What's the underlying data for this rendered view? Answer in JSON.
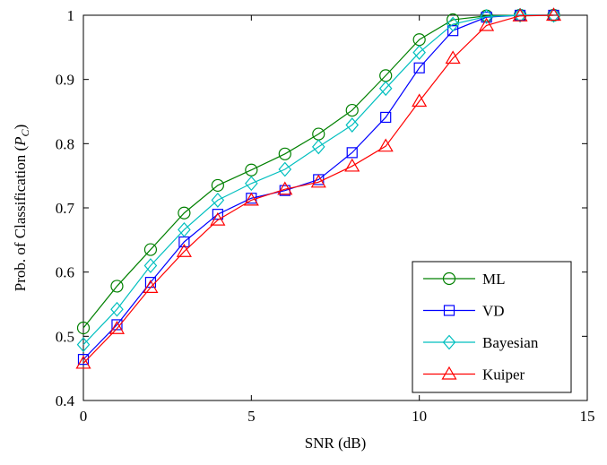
{
  "chart_data": {
    "type": "line",
    "xlabel": "SNR (dB)",
    "ylabel_prefix": "Prob. of Classification (",
    "ylabel_symbol": "P",
    "ylabel_subscript": "C",
    "ylabel_suffix": ")",
    "xlim": [
      0,
      15
    ],
    "ylim": [
      0.4,
      1
    ],
    "xticks": [
      0,
      5,
      10,
      15
    ],
    "xtick_labels": [
      "0",
      "5",
      "10",
      "15"
    ],
    "yticks": [
      0.4,
      0.5,
      0.6,
      0.7,
      0.8,
      0.9,
      1
    ],
    "ytick_labels": [
      "0.4",
      "0.5",
      "0.6",
      "0.7",
      "0.8",
      "0.9",
      "1"
    ],
    "grid": false,
    "legend_position": "bottom-right",
    "x": [
      0,
      1,
      2,
      3,
      4,
      5,
      6,
      7,
      8,
      9,
      10,
      11,
      12,
      13,
      14
    ],
    "series": [
      {
        "name": "ML",
        "color": "#008000",
        "marker": "circle",
        "values": [
          0.513,
          0.578,
          0.635,
          0.692,
          0.735,
          0.759,
          0.784,
          0.815,
          0.852,
          0.906,
          0.962,
          0.993,
          0.999,
          1.0,
          1.0
        ]
      },
      {
        "name": "VD",
        "color": "#0000ff",
        "marker": "square",
        "values": [
          0.464,
          0.518,
          0.584,
          0.647,
          0.69,
          0.715,
          0.727,
          0.744,
          0.786,
          0.841,
          0.918,
          0.976,
          0.997,
          1.0,
          1.0
        ]
      },
      {
        "name": "Bayesian",
        "color": "#00bfbf",
        "marker": "diamond",
        "values": [
          0.487,
          0.542,
          0.61,
          0.666,
          0.712,
          0.738,
          0.76,
          0.795,
          0.829,
          0.886,
          0.942,
          0.986,
          0.998,
          1.0,
          1.0
        ]
      },
      {
        "name": "Kuiper",
        "color": "#ff0000",
        "marker": "triangle",
        "values": [
          0.458,
          0.512,
          0.576,
          0.632,
          0.681,
          0.712,
          0.729,
          0.74,
          0.765,
          0.796,
          0.866,
          0.933,
          0.984,
          0.999,
          1.0
        ]
      }
    ]
  }
}
